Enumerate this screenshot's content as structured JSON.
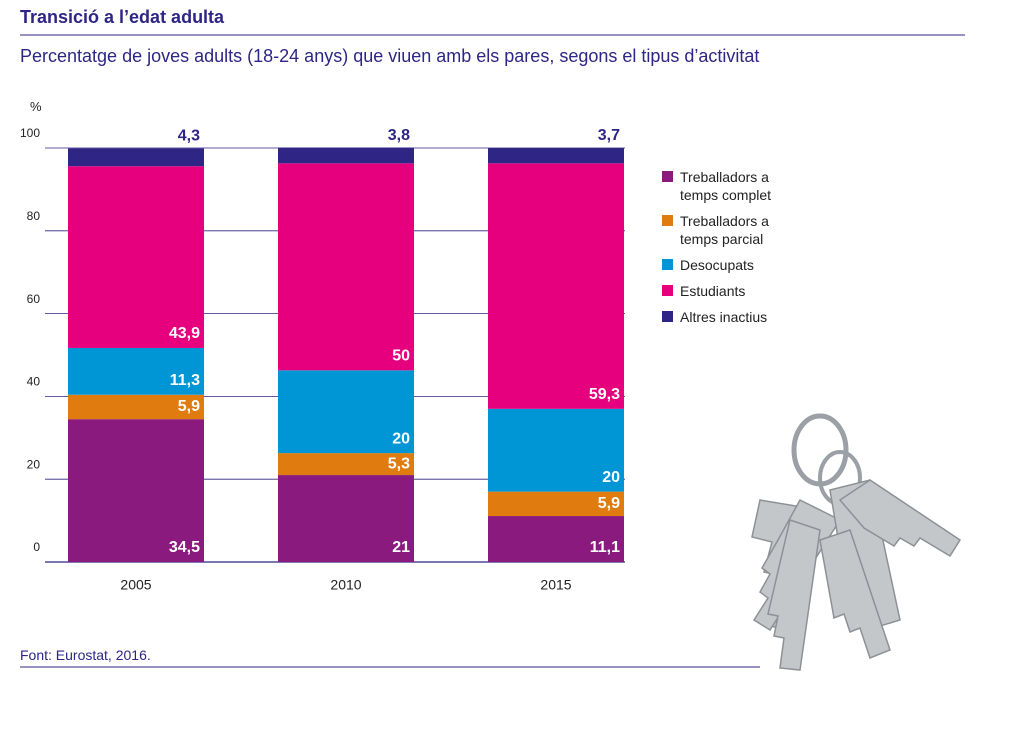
{
  "chart_data": {
    "type": "stacked-bar",
    "title": "Transició a l’edat adulta",
    "subtitle": "Percentatge de joves adults (18-24 anys) que viuen amb els pares, segons el tipus d’activitat",
    "y_label": "%",
    "source": "Font: Eurostat, 2016.",
    "categories": [
      "2005",
      "2010",
      "2015"
    ],
    "series": [
      {
        "name": "Treballadors a temps complet",
        "color": "#8a1a7e",
        "values": [
          34.5,
          21,
          11.1
        ],
        "value_labels": [
          "34,5",
          "21",
          "11,1"
        ]
      },
      {
        "name": "Treballadors a temps parcial",
        "color": "#e07b10",
        "values": [
          5.9,
          5.3,
          5.9
        ],
        "value_labels": [
          "5,9",
          "5,3",
          "5,9"
        ]
      },
      {
        "name": "Desocupats",
        "color": "#0096d6",
        "values": [
          11.3,
          20,
          20
        ],
        "value_labels": [
          "11,3",
          "20",
          "20"
        ]
      },
      {
        "name": "Estudiants",
        "color": "#e6007e",
        "values": [
          43.9,
          50,
          59.3
        ],
        "value_labels": [
          "43,9",
          "50",
          "59,3"
        ]
      },
      {
        "name": "Altres inactius",
        "color": "#2e2585",
        "values": [
          4.3,
          3.8,
          3.7
        ],
        "value_labels": [
          "4,3",
          "3,8",
          "3,7"
        ]
      }
    ],
    "ylim": [
      0,
      100
    ],
    "yticks": [
      0,
      20,
      40,
      60,
      80,
      100
    ],
    "grid": true
  }
}
